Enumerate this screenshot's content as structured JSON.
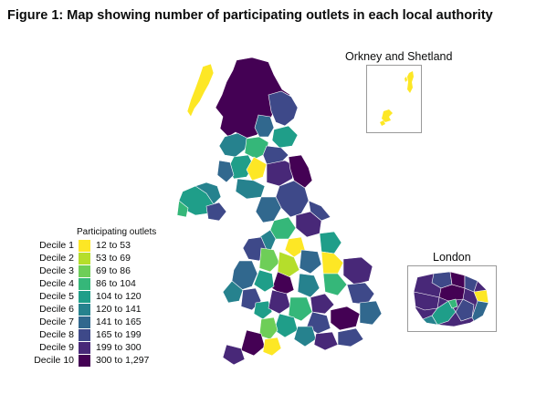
{
  "title": "Figure 1: Map showing number of participating outlets in each local authority",
  "insets": {
    "orkney_shetland": {
      "label": "Orkney and Shetland"
    },
    "london": {
      "label": "London"
    }
  },
  "legend": {
    "title": "Participating outlets",
    "items": [
      {
        "decile": "Decile 1",
        "range": "12 to 53",
        "color": "#fde725"
      },
      {
        "decile": "Decile 2",
        "range": "53 to 69",
        "color": "#b5de2b"
      },
      {
        "decile": "Decile 3",
        "range": "69 to 86",
        "color": "#6ece58"
      },
      {
        "decile": "Decile 4",
        "range": "86 to 104",
        "color": "#35b779"
      },
      {
        "decile": "Decile 5",
        "range": "104 to 120",
        "color": "#1f9e89"
      },
      {
        "decile": "Decile 6",
        "range": "120 to 141",
        "color": "#26828e"
      },
      {
        "decile": "Decile 7",
        "range": "141 to 165",
        "color": "#31688e"
      },
      {
        "decile": "Decile 8",
        "range": "165 to 199",
        "color": "#3e4989"
      },
      {
        "decile": "Decile 9",
        "range": "199 to 300",
        "color": "#482878"
      },
      {
        "decile": "Decile 10",
        "range": "300 to 1,297",
        "color": "#440154"
      }
    ]
  }
}
